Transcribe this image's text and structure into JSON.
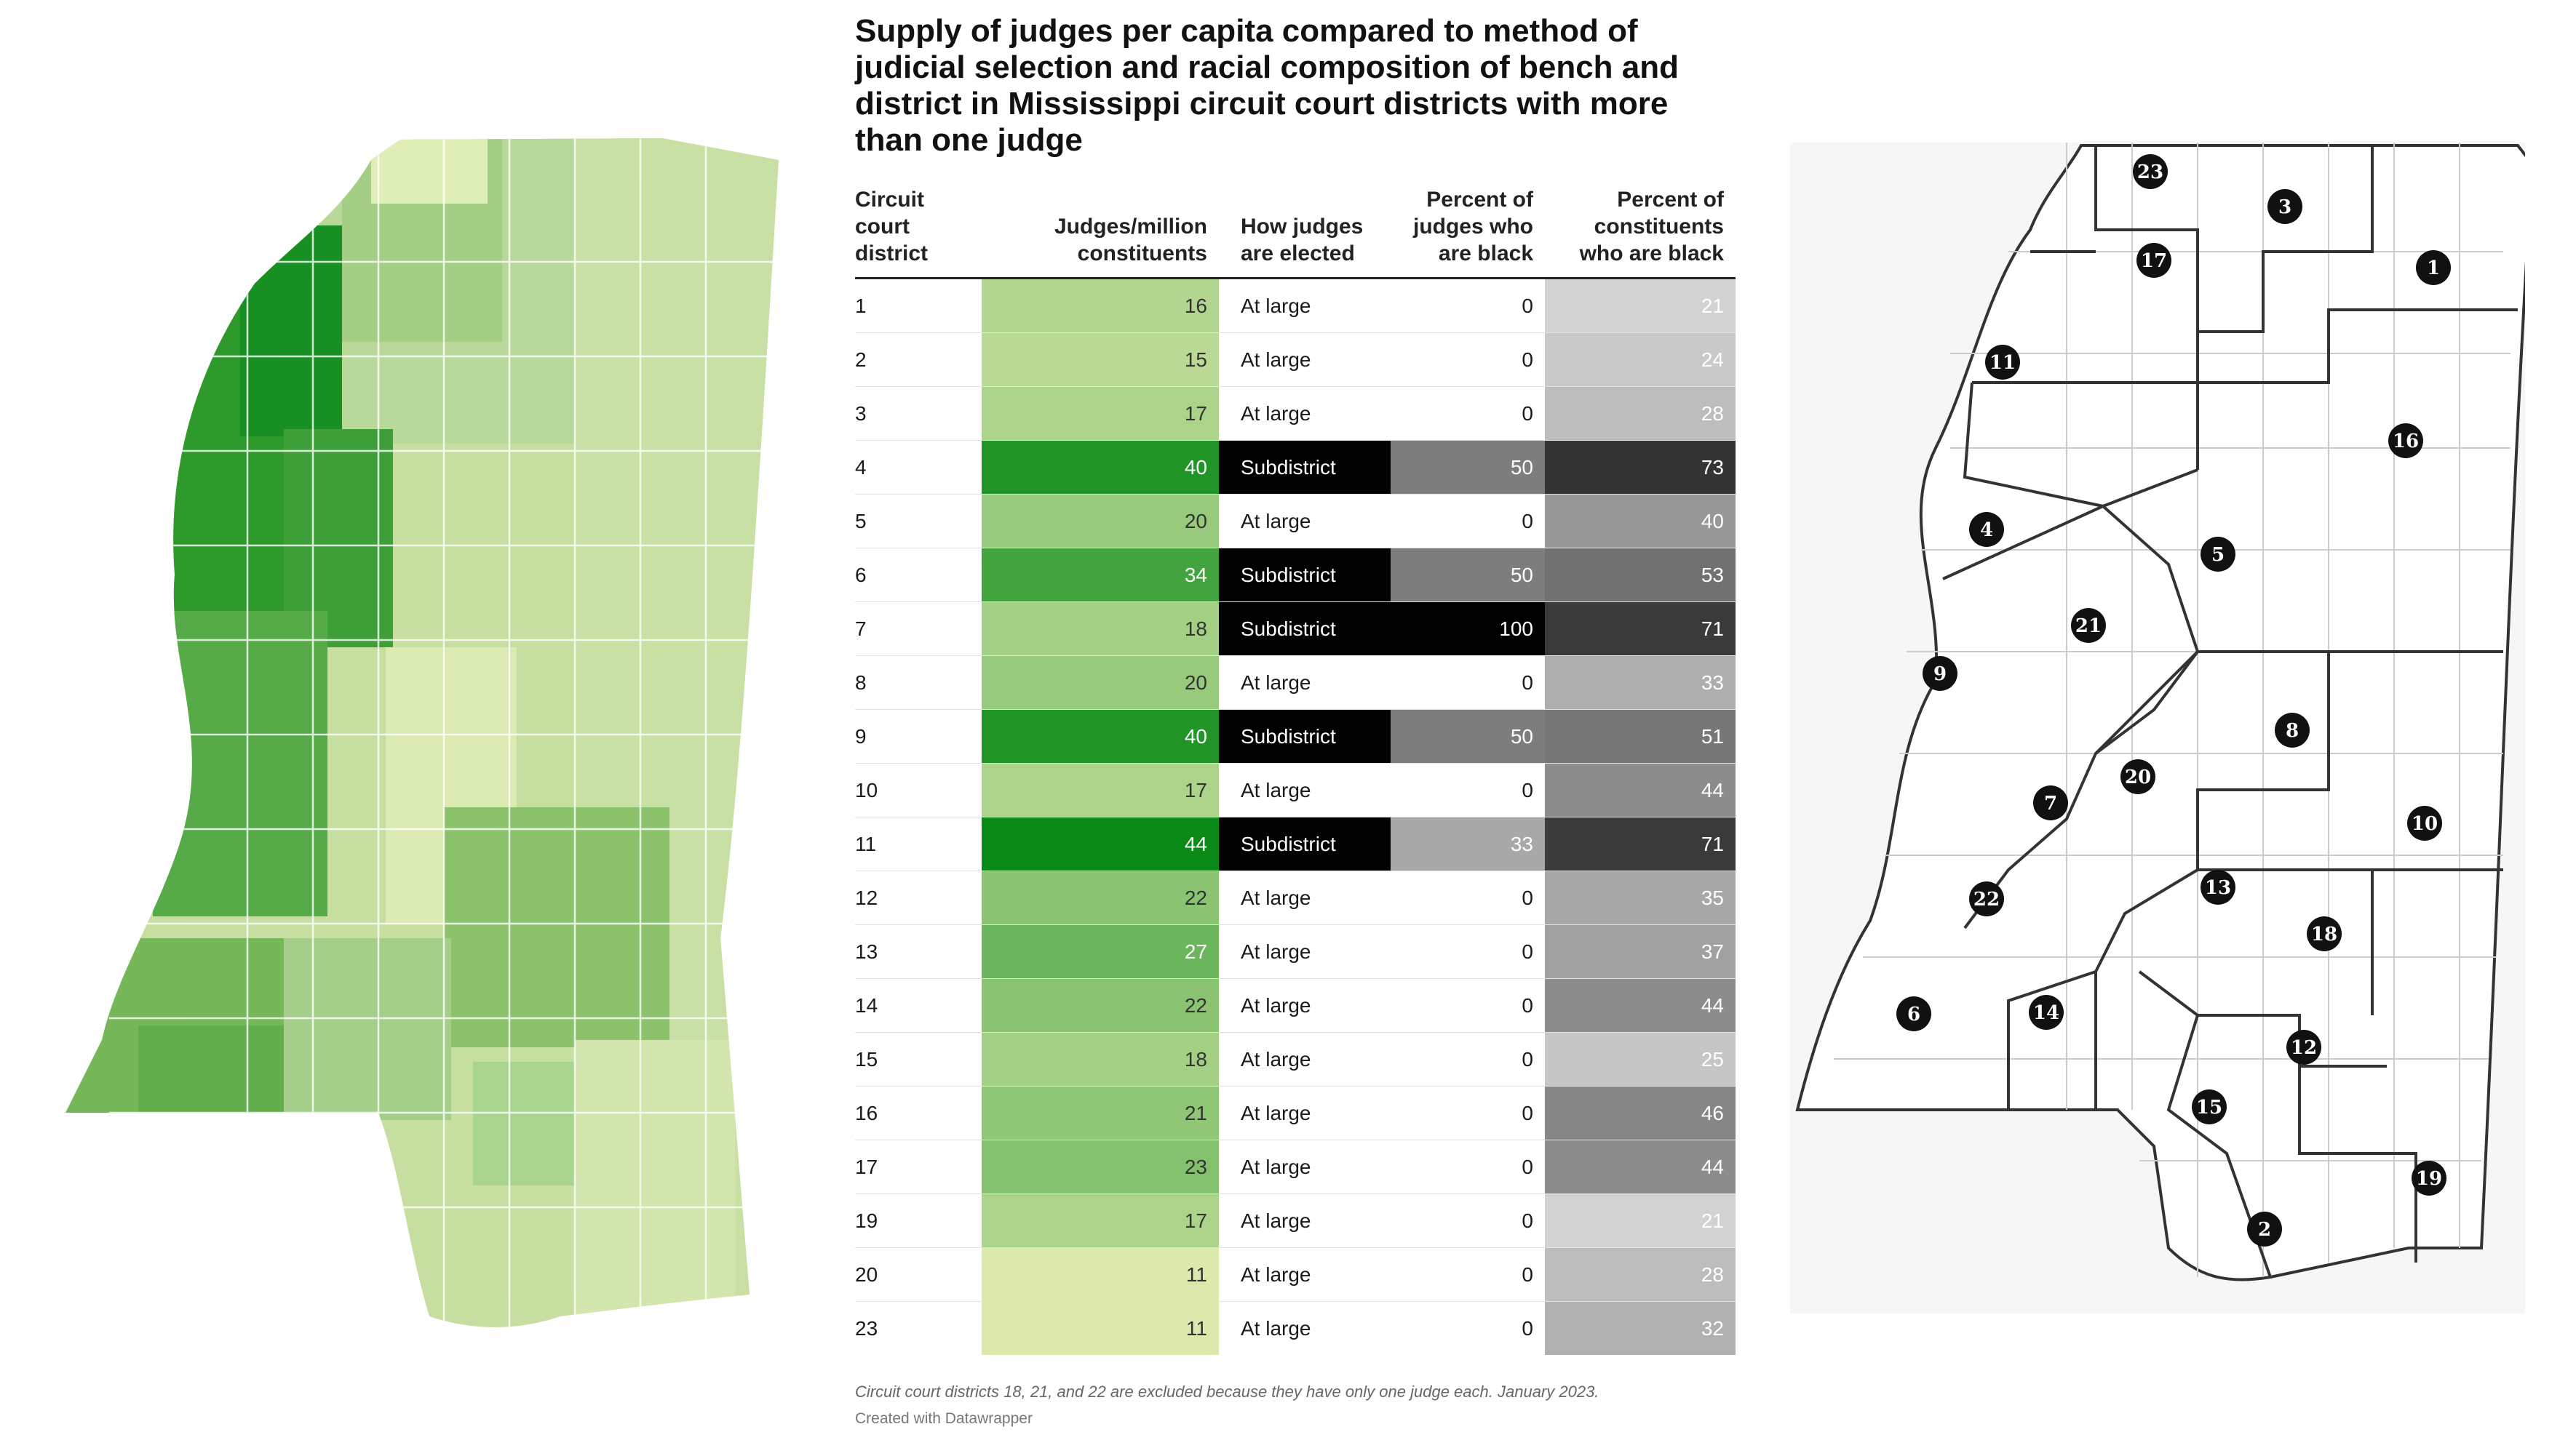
{
  "title": "Supply of judges per capita compared to method of judicial selection and racial composition of bench and district in Mississippi circuit court districts with more than one judge",
  "columns": {
    "district": "Circuit court district",
    "judges": "Judges/million constituents",
    "how": "How judges are elected",
    "pct_judges": "Percent of judges who are black",
    "pct_const": "Percent of constituents who are black"
  },
  "chart_data": {
    "type": "table",
    "columns": [
      "Circuit court district",
      "Judges/million constituents",
      "How judges are elected",
      "Percent of judges who are black",
      "Percent of constituents who are black"
    ],
    "rows": [
      {
        "district": "1",
        "judges": 16,
        "how": "At large",
        "pct_judges": 0,
        "pct_const": 21
      },
      {
        "district": "2",
        "judges": 15,
        "how": "At large",
        "pct_judges": 0,
        "pct_const": 24
      },
      {
        "district": "3",
        "judges": 17,
        "how": "At large",
        "pct_judges": 0,
        "pct_const": 28
      },
      {
        "district": "4",
        "judges": 40,
        "how": "Subdistrict",
        "pct_judges": 50,
        "pct_const": 73
      },
      {
        "district": "5",
        "judges": 20,
        "how": "At large",
        "pct_judges": 0,
        "pct_const": 40
      },
      {
        "district": "6",
        "judges": 34,
        "how": "Subdistrict",
        "pct_judges": 50,
        "pct_const": 53
      },
      {
        "district": "7",
        "judges": 18,
        "how": "Subdistrict",
        "pct_judges": 100,
        "pct_const": 71
      },
      {
        "district": "8",
        "judges": 20,
        "how": "At large",
        "pct_judges": 0,
        "pct_const": 33
      },
      {
        "district": "9",
        "judges": 40,
        "how": "Subdistrict",
        "pct_judges": 50,
        "pct_const": 51
      },
      {
        "district": "10",
        "judges": 17,
        "how": "At large",
        "pct_judges": 0,
        "pct_const": 44
      },
      {
        "district": "11",
        "judges": 44,
        "how": "Subdistrict",
        "pct_judges": 33,
        "pct_const": 71
      },
      {
        "district": "12",
        "judges": 22,
        "how": "At large",
        "pct_judges": 0,
        "pct_const": 35
      },
      {
        "district": "13",
        "judges": 27,
        "how": "At large",
        "pct_judges": 0,
        "pct_const": 37
      },
      {
        "district": "14",
        "judges": 22,
        "how": "At large",
        "pct_judges": 0,
        "pct_const": 44
      },
      {
        "district": "15",
        "judges": 18,
        "how": "At large",
        "pct_judges": 0,
        "pct_const": 25
      },
      {
        "district": "16",
        "judges": 21,
        "how": "At large",
        "pct_judges": 0,
        "pct_const": 46
      },
      {
        "district": "17",
        "judges": 23,
        "how": "At large",
        "pct_judges": 0,
        "pct_const": 44
      },
      {
        "district": "19",
        "judges": 17,
        "how": "At large",
        "pct_judges": 0,
        "pct_const": 21
      },
      {
        "district": "20",
        "judges": 11,
        "how": "At large",
        "pct_judges": 0,
        "pct_const": 28
      },
      {
        "district": "23",
        "judges": 11,
        "how": "At large",
        "pct_judges": 0,
        "pct_const": 32
      }
    ]
  },
  "note": "Circuit court districts 18, 21, and 22 are excluded because they have only one judge each. January 2023.",
  "credit": "Created with Datawrapper",
  "map_labels": [
    "23",
    "3",
    "1",
    "17",
    "11",
    "16",
    "4",
    "5",
    "21",
    "9",
    "8",
    "20",
    "7",
    "10",
    "22",
    "13",
    "18",
    "6",
    "14",
    "12",
    "15",
    "19",
    "2"
  ],
  "colors": {
    "green_low": "#dce9ad",
    "green_high": "#0b8a18",
    "gray_low": "#d2d2d2",
    "gray_high": "#343434",
    "subdistrict_bg": "#000000",
    "label_disc": "#111111",
    "district_line": "#333333",
    "county_line": "#cccccc"
  }
}
